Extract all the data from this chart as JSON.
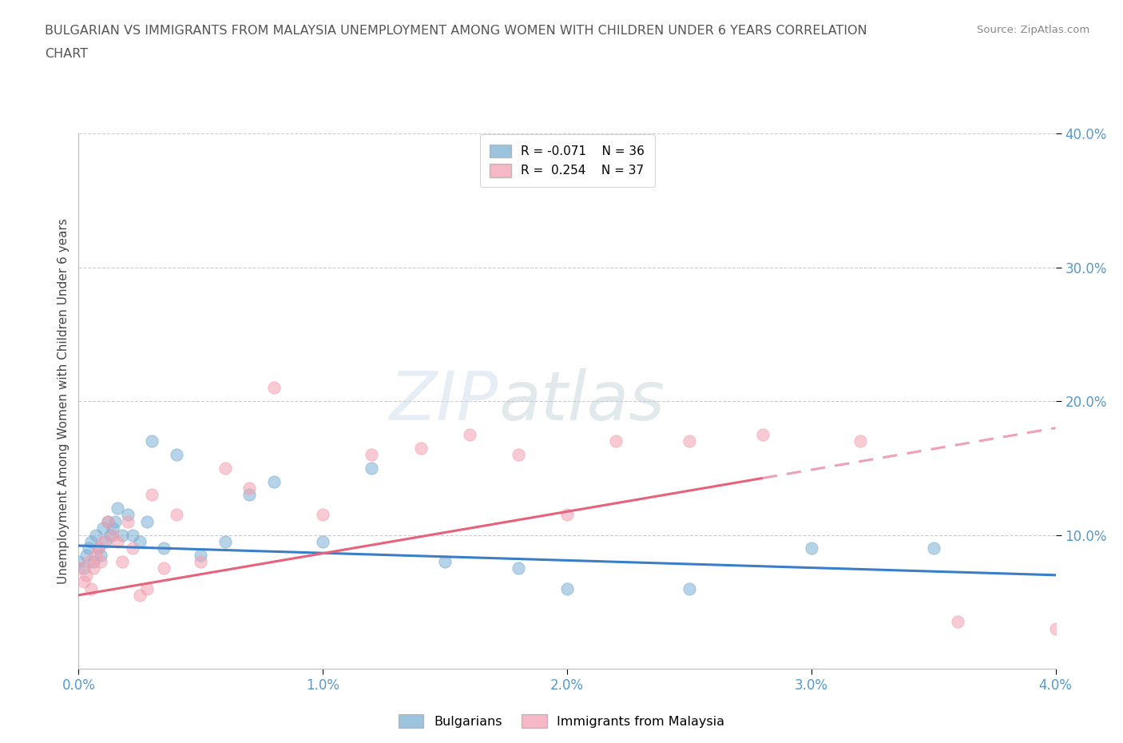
{
  "title_line1": "BULGARIAN VS IMMIGRANTS FROM MALAYSIA UNEMPLOYMENT AMONG WOMEN WITH CHILDREN UNDER 6 YEARS CORRELATION",
  "title_line2": "CHART",
  "source": "Source: ZipAtlas.com",
  "ylabel": "Unemployment Among Women with Children Under 6 years",
  "xlim": [
    0.0,
    4.0
  ],
  "ylim": [
    0.0,
    40.0
  ],
  "bulgarians_color": "#7BAFD4",
  "malaysia_color": "#F4A0B0",
  "bulgarians_label": "Bulgarians",
  "malaysia_label": "Immigrants from Malaysia",
  "legend_r_bulgarians": "R = -0.071",
  "legend_n_bulgarians": "N = 36",
  "legend_r_malaysia": "R =  0.254",
  "legend_n_malaysia": "N = 37",
  "bulgarians_x": [
    0.0,
    0.02,
    0.03,
    0.04,
    0.05,
    0.06,
    0.07,
    0.08,
    0.09,
    0.1,
    0.11,
    0.12,
    0.13,
    0.14,
    0.15,
    0.16,
    0.18,
    0.2,
    0.22,
    0.25,
    0.28,
    0.3,
    0.35,
    0.4,
    0.5,
    0.6,
    0.7,
    0.8,
    1.0,
    1.2,
    1.5,
    1.8,
    2.0,
    2.5,
    3.0,
    3.5
  ],
  "bulgarians_y": [
    8.0,
    7.5,
    8.5,
    9.0,
    9.5,
    8.0,
    10.0,
    9.0,
    8.5,
    10.5,
    9.5,
    11.0,
    10.0,
    10.5,
    11.0,
    12.0,
    10.0,
    11.5,
    10.0,
    9.5,
    11.0,
    17.0,
    9.0,
    16.0,
    8.5,
    9.5,
    13.0,
    14.0,
    9.5,
    15.0,
    8.0,
    7.5,
    6.0,
    6.0,
    9.0,
    9.0
  ],
  "malaysia_x": [
    0.0,
    0.02,
    0.03,
    0.04,
    0.05,
    0.06,
    0.07,
    0.08,
    0.09,
    0.1,
    0.12,
    0.14,
    0.16,
    0.18,
    0.2,
    0.22,
    0.25,
    0.28,
    0.3,
    0.35,
    0.4,
    0.5,
    0.6,
    0.7,
    0.8,
    1.0,
    1.2,
    1.4,
    1.6,
    1.8,
    2.0,
    2.2,
    2.5,
    2.8,
    3.2,
    3.6,
    4.0
  ],
  "malaysia_y": [
    7.5,
    6.5,
    7.0,
    8.0,
    6.0,
    7.5,
    8.5,
    9.0,
    8.0,
    9.5,
    11.0,
    10.0,
    9.5,
    8.0,
    11.0,
    9.0,
    5.5,
    6.0,
    13.0,
    7.5,
    11.5,
    8.0,
    15.0,
    13.5,
    21.0,
    11.5,
    16.0,
    16.5,
    17.5,
    16.0,
    11.5,
    17.0,
    17.0,
    17.5,
    17.0,
    3.5,
    3.0
  ],
  "bg_color": "#FFFFFF",
  "grid_color": "#CCCCCC",
  "trend_bulg_color": "#3A7DC9",
  "trend_mal_color": "#E8607A",
  "trend_mal_dashed_color": "#F0A0B5"
}
